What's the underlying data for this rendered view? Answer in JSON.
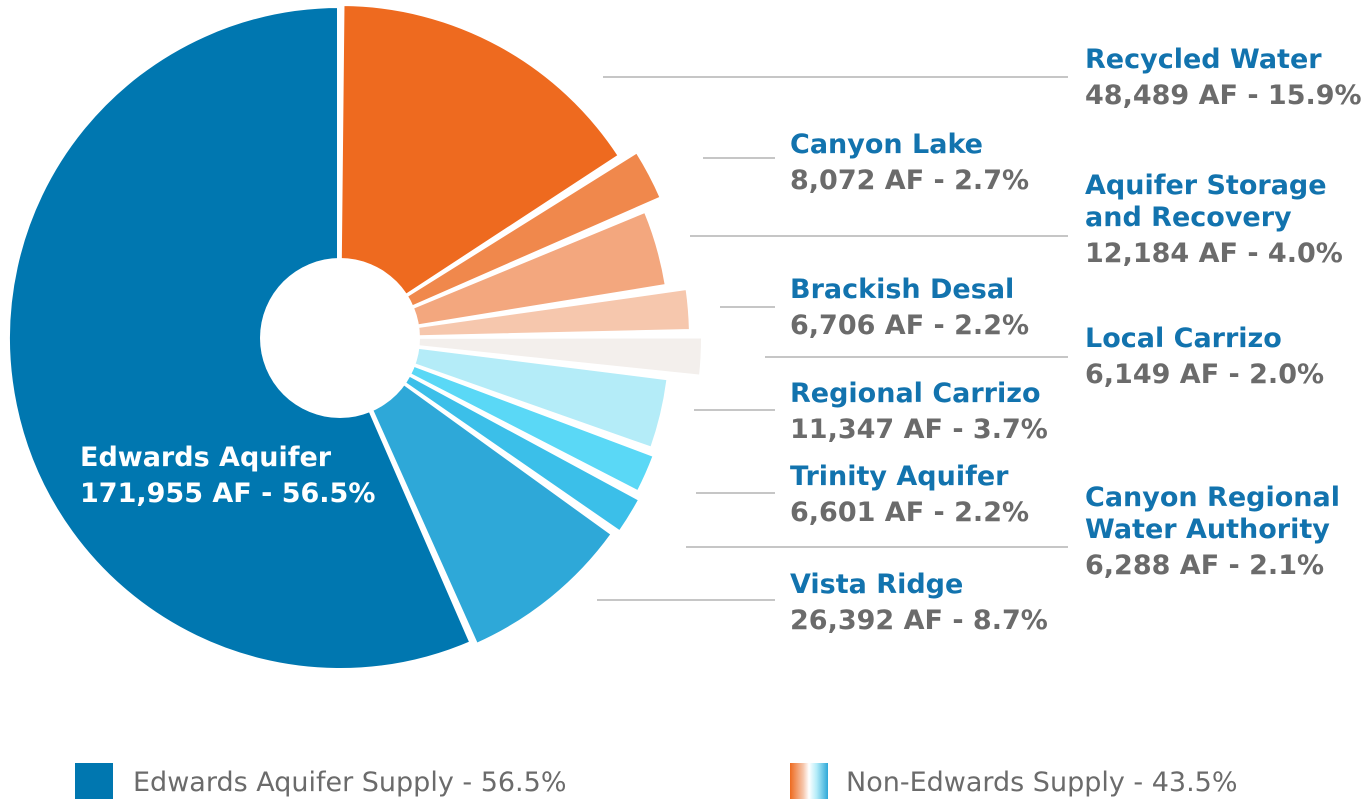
{
  "chart_data": {
    "type": "pie",
    "unit": "AF",
    "slices": [
      {
        "name": "Edwards Aquifer",
        "value": 171955,
        "value_text": "171,955 AF - 56.5%",
        "percent": 56.5,
        "color": "#0077b0",
        "group": "edwards"
      },
      {
        "name": "Recycled Water",
        "value": 48489,
        "value_text": "48,489 AF - 15.9%",
        "percent": 15.9,
        "color": "#ee6a1f",
        "group": "non-edwards"
      },
      {
        "name": "Canyon Lake",
        "value": 8072,
        "value_text": "8,072 AF - 2.7%",
        "percent": 2.7,
        "color": "#f0884c",
        "group": "non-edwards"
      },
      {
        "name": "Aquifer Storage and Recovery",
        "name_lines": [
          "Aquifer Storage",
          "and Recovery"
        ],
        "value": 12184,
        "value_text": "12,184 AF - 4.0%",
        "percent": 4.0,
        "color": "#f3a77e",
        "group": "non-edwards"
      },
      {
        "name": "Brackish Desal",
        "value": 6706,
        "value_text": "6,706 AF - 2.2%",
        "percent": 2.2,
        "color": "#f6c7ad",
        "group": "non-edwards"
      },
      {
        "name": "Local Carrizo",
        "value": 6149,
        "value_text": "6,149 AF - 2.0%",
        "percent": 2.0,
        "color": "#f3efec",
        "group": "non-edwards"
      },
      {
        "name": "Regional Carrizo",
        "value": 11347,
        "value_text": "11,347 AF - 3.7%",
        "percent": 3.7,
        "color": "#b4ecf8",
        "group": "non-edwards"
      },
      {
        "name": "Trinity Aquifer",
        "value": 6601,
        "value_text": "6,601 AF - 2.2%",
        "percent": 2.2,
        "color": "#5ad8f6",
        "group": "non-edwards"
      },
      {
        "name": "Canyon Regional Water Authority",
        "name_lines": [
          "Canyon Regional",
          "Water Authority"
        ],
        "value": 6288,
        "value_text": "6,288 AF - 2.1%",
        "percent": 2.1,
        "color": "#3bbfe9",
        "group": "non-edwards"
      },
      {
        "name": "Vista Ridge",
        "value": 26392,
        "value_text": "26,392 AF - 8.7%",
        "percent": 8.7,
        "color": "#2ea8d8",
        "group": "non-edwards"
      }
    ],
    "legend": [
      {
        "label": "Edwards Aquifer Supply - 56.5%",
        "swatch": "#0077b0"
      },
      {
        "label": "Non-Edwards Supply - 43.5%",
        "swatch_gradient": [
          "#ee6a1f",
          "#f6c7ad",
          "#ffffff",
          "#b4ecf8",
          "#2ea8d8"
        ]
      }
    ],
    "legend_position": "bottom"
  }
}
